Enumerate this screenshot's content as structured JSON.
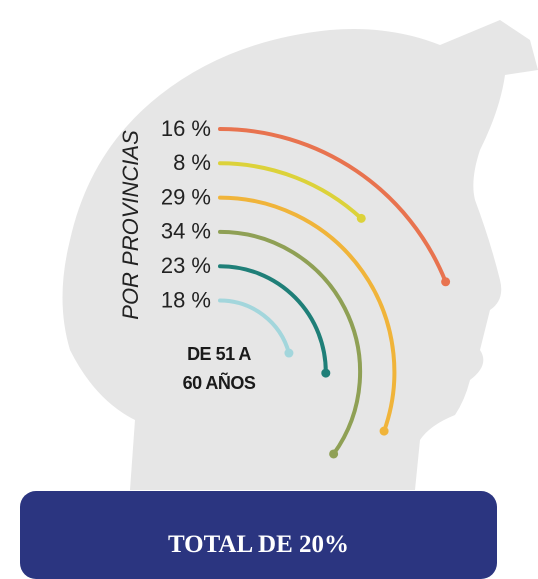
{
  "chart_data": {
    "type": "radial-arc",
    "title": "DE 51 A 60 AÑOS",
    "axis_label": "POR PROVINCIAS",
    "annotation": "TOTAL DE 20%",
    "values": [
      16,
      8,
      29,
      34,
      23,
      18
    ],
    "value_labels": [
      "16 %",
      "8 %",
      "29 %",
      "34 %",
      "23 %",
      "18 %"
    ],
    "colors": [
      "#e8734f",
      "#dcd23a",
      "#f0b43a",
      "#8fa055",
      "#1f7f78",
      "#a3d6dc"
    ]
  }
}
